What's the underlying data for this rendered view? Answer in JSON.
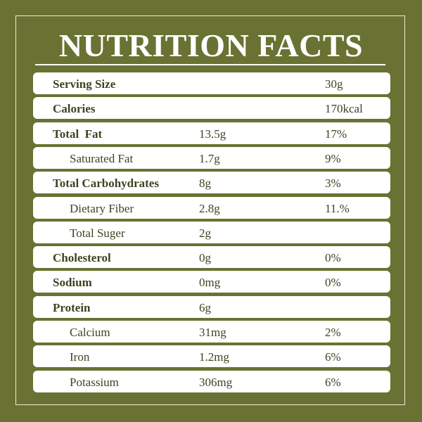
{
  "header": {
    "title": "NUTRITION FACTS"
  },
  "table": {
    "rows": [
      {
        "bold": true,
        "cells": [
          "Serving Size",
          null,
          "30g"
        ]
      },
      {
        "bold": true,
        "cells": [
          "Calories",
          null,
          "170kcal"
        ]
      },
      {
        "bold": true,
        "cells": [
          "Total  Fat",
          "13.5g",
          "17%"
        ]
      },
      {
        "bold": false,
        "cells": [
          "Saturated Fat",
          "1.7g",
          "9%"
        ]
      },
      {
        "bold": true,
        "cells": [
          "Total Carbohydrates",
          "8g",
          "3%"
        ]
      },
      {
        "bold": false,
        "cells": [
          "Dietary Fiber",
          "2.8g",
          "11.%"
        ]
      },
      {
        "bold": false,
        "cells": [
          "Total Suger",
          "2g",
          null
        ]
      },
      {
        "bold": true,
        "cells": [
          "Cholesterol",
          "0g",
          "0%"
        ]
      },
      {
        "bold": true,
        "cells": [
          "Sodium",
          "0mg",
          "0%"
        ]
      },
      {
        "bold": true,
        "cells": [
          "Protein",
          "6g",
          null
        ]
      },
      {
        "bold": false,
        "cells": [
          "Calcium",
          "31mg",
          "2%"
        ]
      },
      {
        "bold": false,
        "cells": [
          "Iron",
          "1.2mg",
          "6%"
        ]
      },
      {
        "bold": false,
        "cells": [
          "Potassium",
          "306mg",
          "6%"
        ]
      }
    ]
  }
}
